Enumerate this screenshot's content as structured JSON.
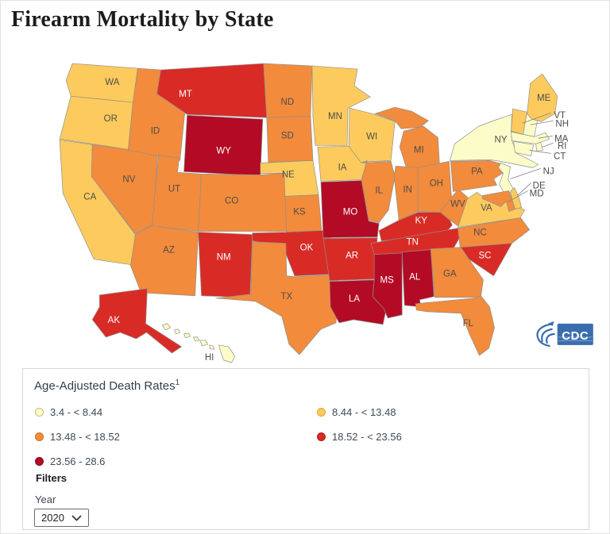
{
  "page": {
    "title": "Firearm Mortality by State"
  },
  "chart_data": {
    "type": "choropleth",
    "title": "Firearm Mortality by State",
    "measure": "Age-Adjusted Death Rates",
    "year": "2020",
    "legend_position": "bottom",
    "bins": [
      {
        "label": "3.4 - < 8.44",
        "color": "#FCFCC9",
        "border": "#C9BC7E"
      },
      {
        "label": "8.44 - < 13.48",
        "color": "#FDCB5D",
        "border": "#DFA43B"
      },
      {
        "label": "13.48 - < 18.52",
        "color": "#F28B3C",
        "border": "#D4711F"
      },
      {
        "label": "18.52 - < 23.56",
        "color": "#D92B26",
        "border": "#B21C1A"
      },
      {
        "label": "23.56 - 28.6",
        "color": "#B30B25",
        "border": "#8C0619"
      }
    ],
    "states": [
      {
        "abbr": "WA",
        "bin": 1
      },
      {
        "abbr": "OR",
        "bin": 1
      },
      {
        "abbr": "CA",
        "bin": 1
      },
      {
        "abbr": "NV",
        "bin": 2
      },
      {
        "abbr": "ID",
        "bin": 2
      },
      {
        "abbr": "MT",
        "bin": 3
      },
      {
        "abbr": "WY",
        "bin": 4
      },
      {
        "abbr": "UT",
        "bin": 2
      },
      {
        "abbr": "CO",
        "bin": 2
      },
      {
        "abbr": "AZ",
        "bin": 2
      },
      {
        "abbr": "NM",
        "bin": 3
      },
      {
        "abbr": "ND",
        "bin": 2
      },
      {
        "abbr": "SD",
        "bin": 2
      },
      {
        "abbr": "NE",
        "bin": 1
      },
      {
        "abbr": "KS",
        "bin": 2
      },
      {
        "abbr": "OK",
        "bin": 3
      },
      {
        "abbr": "TX",
        "bin": 2
      },
      {
        "abbr": "MN",
        "bin": 1
      },
      {
        "abbr": "IA",
        "bin": 1
      },
      {
        "abbr": "MO",
        "bin": 4
      },
      {
        "abbr": "AR",
        "bin": 3
      },
      {
        "abbr": "LA",
        "bin": 4
      },
      {
        "abbr": "WI",
        "bin": 1
      },
      {
        "abbr": "IL",
        "bin": 2
      },
      {
        "abbr": "MS",
        "bin": 4
      },
      {
        "abbr": "MI",
        "bin": 2
      },
      {
        "abbr": "IN",
        "bin": 2
      },
      {
        "abbr": "KY",
        "bin": 3
      },
      {
        "abbr": "TN",
        "bin": 3
      },
      {
        "abbr": "AL",
        "bin": 4
      },
      {
        "abbr": "OH",
        "bin": 2
      },
      {
        "abbr": "GA",
        "bin": 2
      },
      {
        "abbr": "FL",
        "bin": 2
      },
      {
        "abbr": "WV",
        "bin": 2
      },
      {
        "abbr": "VA",
        "bin": 1
      },
      {
        "abbr": "NC",
        "bin": 2
      },
      {
        "abbr": "SC",
        "bin": 3
      },
      {
        "abbr": "PA",
        "bin": 2
      },
      {
        "abbr": "NY",
        "bin": 0
      },
      {
        "abbr": "NJ",
        "bin": 0
      },
      {
        "abbr": "DE",
        "bin": 1
      },
      {
        "abbr": "MD",
        "bin": 2
      },
      {
        "abbr": "VT",
        "bin": 1
      },
      {
        "abbr": "NH",
        "bin": 0
      },
      {
        "abbr": "ME",
        "bin": 1
      },
      {
        "abbr": "MA",
        "bin": 0
      },
      {
        "abbr": "RI",
        "bin": 0
      },
      {
        "abbr": "CT",
        "bin": 0
      },
      {
        "abbr": "AK",
        "bin": 3
      },
      {
        "abbr": "HI",
        "bin": 0
      }
    ]
  },
  "legend": {
    "title": "Age-Adjusted Death Rates",
    "superscript": "1"
  },
  "filters": {
    "heading": "Filters",
    "year_label": "Year",
    "year_value": "2020"
  },
  "logo": {
    "text": "CDC",
    "color": "#3A6DAE"
  }
}
